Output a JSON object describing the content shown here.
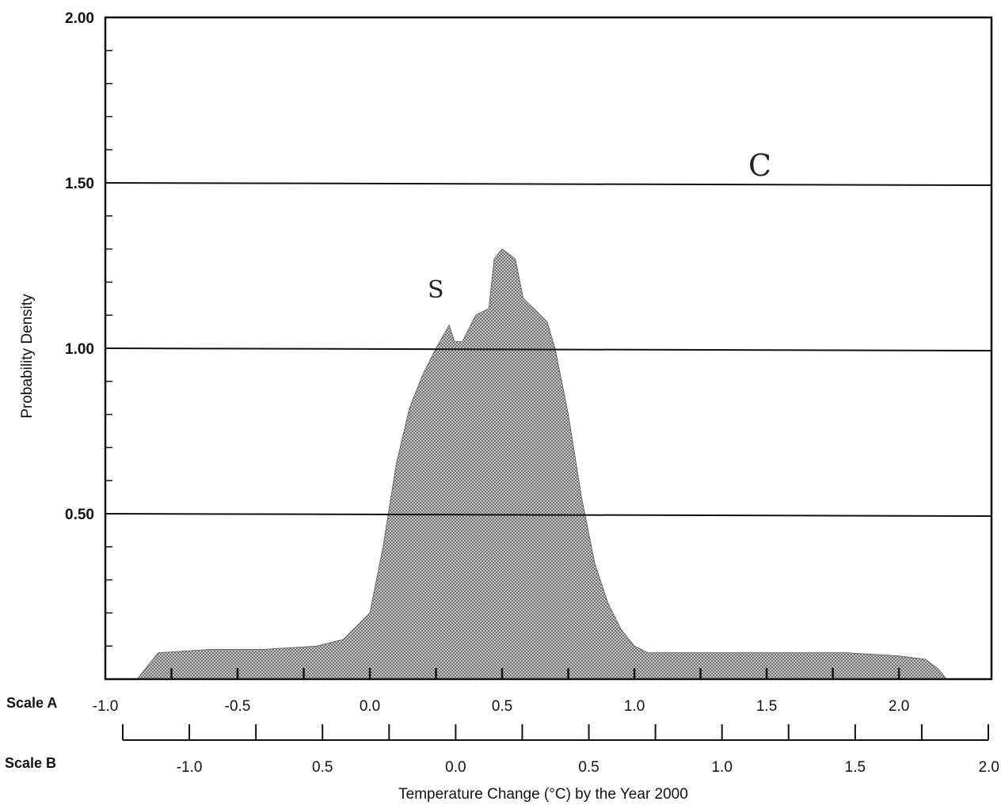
{
  "chart_data": {
    "type": "area",
    "xlabel": "Temperature Change (°C) by the Year 2000",
    "ylabel": "Probability Density",
    "ylim": [
      0,
      2.0
    ],
    "y_ticks": [
      "0.50",
      "1.00",
      "1.50",
      "2.00"
    ],
    "gridlines_y": [
      0.5,
      1.0,
      1.5
    ],
    "scale_a": {
      "name": "Scale A",
      "range": [
        -1.0,
        2.35
      ],
      "tick_labels": [
        "-1.0",
        "-0.5",
        "0.0",
        "0.5",
        "1.0",
        "1.5",
        "2.0"
      ]
    },
    "scale_b": {
      "name": "Scale B",
      "range": [
        -1.25,
        2.0
      ],
      "tick_labels": [
        "-1.0",
        "0.5",
        "0.0",
        "0.5",
        "1.0",
        "1.5",
        "2.0"
      ]
    },
    "series": [
      {
        "x_scale": "Scale A",
        "fill": "#9a9a9a",
        "x": [
          -0.88,
          -0.8,
          -0.6,
          -0.4,
          -0.2,
          -0.1,
          0.0,
          0.05,
          0.1,
          0.15,
          0.2,
          0.25,
          0.3,
          0.32,
          0.35,
          0.4,
          0.45,
          0.47,
          0.5,
          0.55,
          0.58,
          0.62,
          0.67,
          0.7,
          0.75,
          0.8,
          0.85,
          0.9,
          0.95,
          1.0,
          1.05,
          1.1,
          1.2,
          1.4,
          1.6,
          1.8,
          2.0,
          2.1,
          2.15,
          2.18
        ],
        "y": [
          0.0,
          0.08,
          0.09,
          0.09,
          0.1,
          0.12,
          0.2,
          0.4,
          0.65,
          0.82,
          0.92,
          1.0,
          1.07,
          1.02,
          1.02,
          1.1,
          1.12,
          1.27,
          1.3,
          1.27,
          1.15,
          1.12,
          1.08,
          1.0,
          0.8,
          0.55,
          0.35,
          0.23,
          0.15,
          0.1,
          0.08,
          0.08,
          0.08,
          0.08,
          0.08,
          0.08,
          0.07,
          0.06,
          0.03,
          0.0
        ]
      }
    ],
    "annotations": [
      "S",
      "C"
    ]
  }
}
